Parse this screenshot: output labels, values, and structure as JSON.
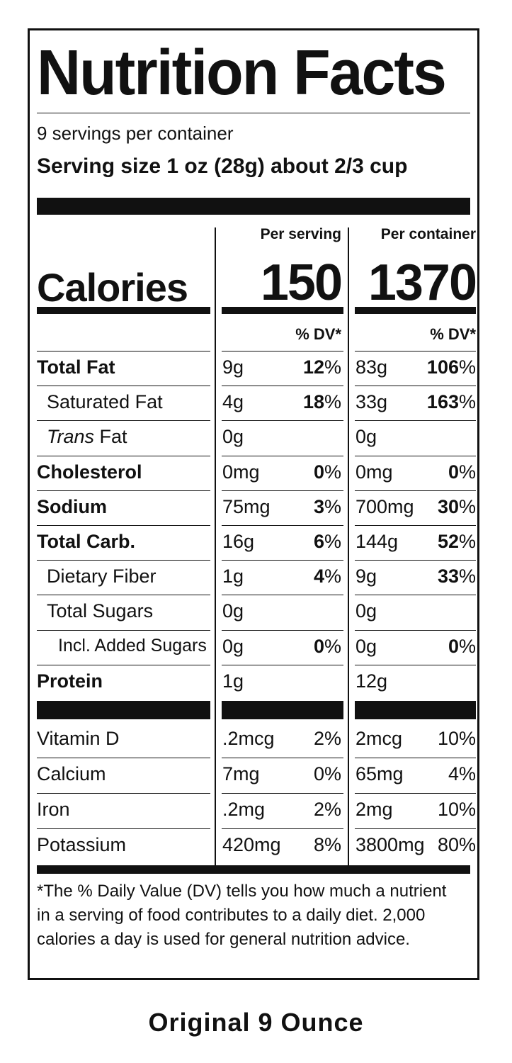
{
  "title": "Nutrition Facts",
  "servings_per_container": "9 servings per container",
  "serving_size": "Serving size 1 oz (28g) about 2/3 cup",
  "columns": {
    "per_serving": "Per serving",
    "per_container": "Per container"
  },
  "calories": {
    "label": "Calories",
    "per_serving": "150",
    "per_container": "1370"
  },
  "dv_header": "% DV*",
  "nutrients": [
    {
      "name": "Total Fat",
      "bold": true,
      "s_amt": "9g",
      "s_pct": "12",
      "c_amt": "83g",
      "c_pct": "106"
    },
    {
      "name": "Saturated Fat",
      "bold": false,
      "s_amt": "4g",
      "s_pct": "18",
      "c_amt": "33g",
      "c_pct": "163"
    },
    {
      "name": "Trans Fat",
      "bold": false,
      "s_amt": "0g",
      "s_pct": "",
      "c_amt": "0g",
      "c_pct": ""
    },
    {
      "name": "Cholesterol",
      "bold": true,
      "s_amt": "0mg",
      "s_pct": "0",
      "c_amt": "0mg",
      "c_pct": "0"
    },
    {
      "name": "Sodium",
      "bold": true,
      "s_amt": "75mg",
      "s_pct": "3",
      "c_amt": "700mg",
      "c_pct": "30"
    },
    {
      "name": "Total Carb.",
      "bold": true,
      "s_amt": "16g",
      "s_pct": "6",
      "c_amt": "144g",
      "c_pct": "52"
    },
    {
      "name": "Dietary Fiber",
      "bold": false,
      "s_amt": "1g",
      "s_pct": "4",
      "c_amt": "9g",
      "c_pct": "33"
    },
    {
      "name": "Total Sugars",
      "bold": false,
      "s_amt": "0g",
      "s_pct": "",
      "c_amt": "0g",
      "c_pct": ""
    },
    {
      "name": "Incl. Added Sugars",
      "bold": false,
      "s_amt": "0g",
      "s_pct": "0",
      "c_amt": "0g",
      "c_pct": "0"
    },
    {
      "name": "Protein",
      "bold": true,
      "s_amt": "1g",
      "s_pct": "",
      "c_amt": "12g",
      "c_pct": ""
    }
  ],
  "vitamins": [
    {
      "name": "Vitamin D",
      "s_amt": ".2mcg",
      "s_pct": "2%",
      "c_amt": "2mcg",
      "c_pct": "10%"
    },
    {
      "name": "Calcium",
      "s_amt": "7mg",
      "s_pct": "0%",
      "c_amt": "65mg",
      "c_pct": "4%"
    },
    {
      "name": "Iron",
      "s_amt": ".2mg",
      "s_pct": "2%",
      "c_amt": "2mg",
      "c_pct": "10%"
    },
    {
      "name": "Potassium",
      "s_amt": "420mg",
      "s_pct": "8%",
      "c_amt": "3800mg",
      "c_pct": "80%"
    }
  ],
  "footnote": "*The % Daily Value (DV) tells you how much a nutrient in a serving of food contributes to a daily diet. 2,000 calories a day is used for general nutrition advice.",
  "caption": "Original 9 Ounce"
}
